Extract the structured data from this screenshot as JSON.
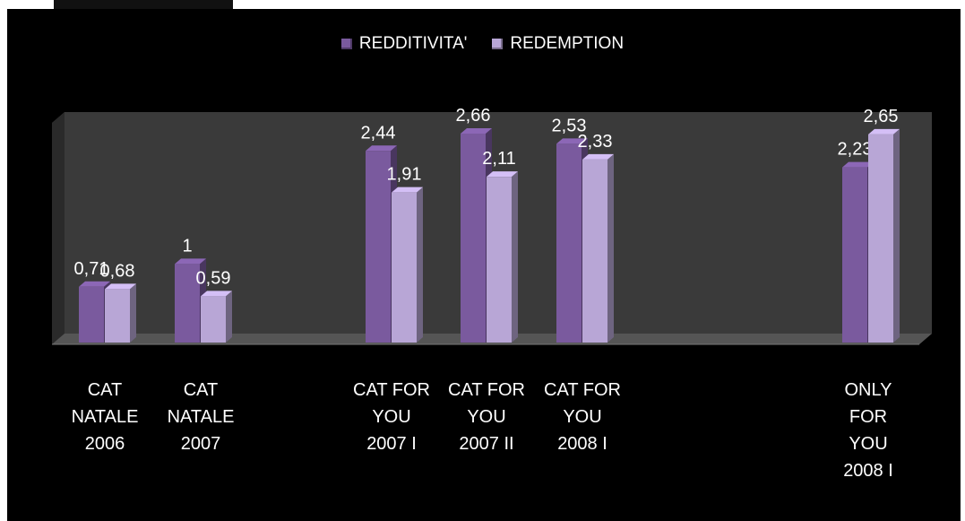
{
  "chart_data": {
    "type": "bar",
    "categories": [
      [
        "CAT",
        "NATALE",
        "2006"
      ],
      [
        "CAT",
        "NATALE",
        "2007"
      ],
      [
        "CAT FOR",
        "YOU",
        "2007 I"
      ],
      [
        "CAT FOR",
        "YOU",
        "2007 II"
      ],
      [
        "CAT FOR",
        "YOU",
        "2008 I"
      ],
      [
        "ONLY",
        "FOR",
        "YOU",
        "2008 I"
      ]
    ],
    "series": [
      {
        "name": "REDDITIVITA'",
        "values": [
          0.71,
          1,
          2.44,
          2.66,
          2.53,
          2.23
        ],
        "labels": [
          "0,71",
          "1",
          "2,44",
          "2,66",
          "2,53",
          "2,23"
        ],
        "color": "#7a5a9e"
      },
      {
        "name": "REDEMPTION",
        "values": [
          0.68,
          0.59,
          1.91,
          2.11,
          2.33,
          2.65
        ],
        "labels": [
          "0,68",
          "0,59",
          "1,91",
          "2,11",
          "2,33",
          "2,65"
        ],
        "color": "#b8a6d6"
      }
    ],
    "ylim": [
      0,
      3
    ],
    "legend_position": "top",
    "grid": false,
    "background": "#000000",
    "wall_color": "#3a3a3a"
  }
}
